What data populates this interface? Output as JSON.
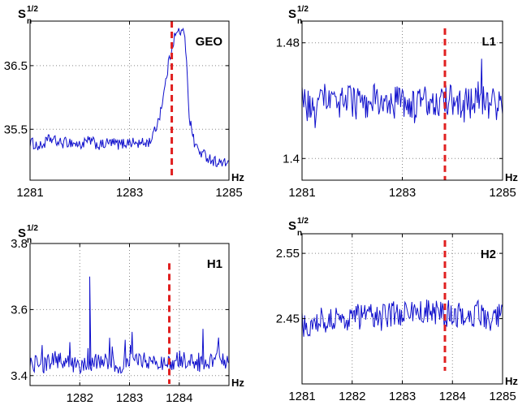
{
  "figure": {
    "colors": {
      "series": "#1010cc",
      "marker": "#e02020",
      "grid": "#888888",
      "axes": "#000000"
    }
  },
  "chart_data": [
    {
      "type": "line",
      "detector": "GEO",
      "ylabel": {
        "base": "S",
        "sub": "n",
        "sup": "1/2"
      },
      "xunit": "Hz",
      "xlim": [
        1281,
        1285
      ],
      "ylim": [
        34.7,
        37.2
      ],
      "xticks": [
        {
          "v": 1281,
          "label": "1281"
        },
        {
          "v": 1283,
          "label": "1283"
        },
        {
          "v": 1285,
          "label": "1285"
        }
      ],
      "yticks": [
        {
          "v": 35.5,
          "label": "35.5"
        },
        {
          "v": 36.5,
          "label": "36.5"
        }
      ],
      "grid": true,
      "marker_x": 1283.85,
      "marker_yrange": [
        34.75,
        37.2
      ],
      "series": [
        {
          "x": [
            1281,
            1281.2,
            1281.4,
            1281.6,
            1281.8,
            1282,
            1282.2,
            1282.4,
            1282.6,
            1282.8,
            1283,
            1283.2,
            1283.4,
            1283.5,
            1283.6,
            1283.7,
            1283.8,
            1283.9,
            1284.0,
            1284.1,
            1284.15,
            1284.2,
            1284.3,
            1284.4,
            1284.5,
            1284.6,
            1284.7,
            1284.8,
            1284.9,
            1285
          ],
          "y": [
            35.3,
            35.22,
            35.35,
            35.28,
            35.3,
            35.25,
            35.32,
            35.24,
            35.29,
            35.26,
            35.3,
            35.27,
            35.3,
            35.45,
            35.7,
            36.1,
            36.6,
            36.95,
            37.05,
            37.0,
            36.6,
            35.7,
            35.3,
            35.15,
            35.1,
            35.05,
            35.0,
            34.98,
            34.95,
            35.0
          ]
        }
      ]
    },
    {
      "type": "line",
      "detector": "L1",
      "ylabel": {
        "base": "S",
        "sub": "n",
        "sup": "1/2"
      },
      "xunit": "Hz",
      "xlim": [
        1281,
        1285
      ],
      "ylim": [
        1.385,
        1.495
      ],
      "xticks": [
        {
          "v": 1281,
          "label": "1281"
        },
        {
          "v": 1283,
          "label": "1283"
        },
        {
          "v": 1285,
          "label": "1285"
        }
      ],
      "yticks": [
        {
          "v": 1.4,
          "label": "1.4"
        },
        {
          "v": 1.48,
          "label": "1.48"
        }
      ],
      "grid": true,
      "marker_x": 1283.85,
      "marker_yrange": [
        1.385,
        1.49
      ],
      "series": [
        {
          "x": [
            1281,
            1281.25,
            1281.5,
            1281.75,
            1282,
            1282.25,
            1282.5,
            1282.75,
            1283,
            1283.25,
            1283.5,
            1283.75,
            1284,
            1284.25,
            1284.5,
            1284.75,
            1285
          ],
          "y": [
            1.44,
            1.43,
            1.445,
            1.438,
            1.44,
            1.435,
            1.443,
            1.437,
            1.44,
            1.436,
            1.442,
            1.438,
            1.441,
            1.436,
            1.444,
            1.437,
            1.44
          ]
        }
      ]
    },
    {
      "type": "line",
      "detector": "H1",
      "ylabel": {
        "base": "S",
        "sub": "n",
        "sup": "1/2"
      },
      "xunit": "Hz",
      "xlim": [
        1281,
        1285
      ],
      "ylim": [
        3.37,
        3.8
      ],
      "xticks": [
        {
          "v": 1282,
          "label": "1282"
        },
        {
          "v": 1283,
          "label": "1283"
        },
        {
          "v": 1284,
          "label": "1284"
        }
      ],
      "yticks": [
        {
          "v": 3.4,
          "label": "3.4"
        },
        {
          "v": 3.6,
          "label": "3.6"
        },
        {
          "v": 3.8,
          "label": "3.8"
        }
      ],
      "grid": true,
      "marker_x": 1283.8,
      "marker_yrange": [
        3.375,
        3.74
      ],
      "series": [
        {
          "x": [
            1281,
            1281.25,
            1281.5,
            1281.75,
            1282,
            1282.25,
            1282.5,
            1282.75,
            1283,
            1283.25,
            1283.5,
            1283.75,
            1284,
            1284.25,
            1284.5,
            1284.75,
            1285
          ],
          "y": [
            3.44,
            3.43,
            3.45,
            3.44,
            3.43,
            3.44,
            3.45,
            3.43,
            3.44,
            3.45,
            3.44,
            3.43,
            3.45,
            3.44,
            3.43,
            3.45,
            3.44
          ]
        }
      ]
    },
    {
      "type": "line",
      "detector": "H2",
      "ylabel": {
        "base": "S",
        "sub": "n",
        "sup": "1/2"
      },
      "xunit": "Hz",
      "xlim": [
        1281,
        1285
      ],
      "ylim": [
        2.35,
        2.58
      ],
      "xticks": [
        {
          "v": 1281,
          "label": "1281"
        },
        {
          "v": 1282,
          "label": "1282"
        },
        {
          "v": 1283,
          "label": "1283"
        },
        {
          "v": 1284,
          "label": "1284"
        },
        {
          "v": 1285,
          "label": "1285"
        }
      ],
      "yticks": [
        {
          "v": 2.45,
          "label": "2.45"
        },
        {
          "v": 2.55,
          "label": "2.55"
        }
      ],
      "grid": true,
      "marker_x": 1283.85,
      "marker_yrange": [
        2.37,
        2.57
      ],
      "series": [
        {
          "x": [
            1281,
            1281.25,
            1281.5,
            1281.75,
            1282,
            1282.25,
            1282.5,
            1282.75,
            1283,
            1283.25,
            1283.5,
            1283.75,
            1284,
            1284.25,
            1284.5,
            1284.75,
            1285
          ],
          "y": [
            2.44,
            2.445,
            2.45,
            2.448,
            2.452,
            2.455,
            2.45,
            2.456,
            2.458,
            2.46,
            2.462,
            2.455,
            2.46,
            2.455,
            2.458,
            2.452,
            2.455
          ]
        }
      ]
    }
  ]
}
